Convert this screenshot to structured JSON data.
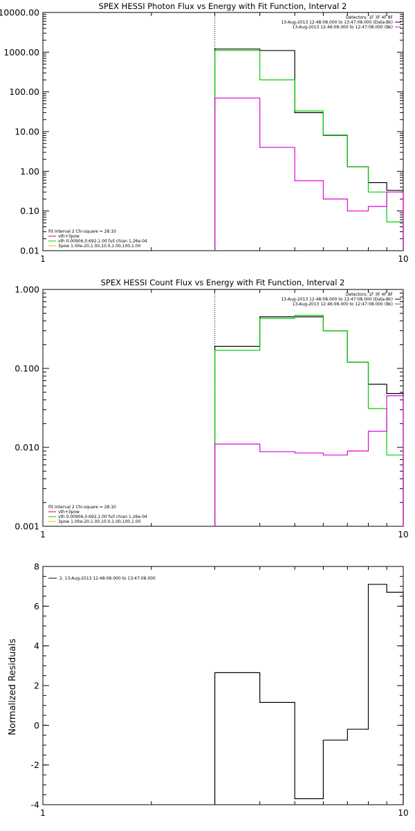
{
  "chart_data": [
    {
      "type": "line",
      "title": "SPEX HESSI Photon Flux vs Energy with Fit Function, Interval 2",
      "xlabel": "",
      "ylabel": "",
      "xscale": "log",
      "yscale": "log",
      "xlim": [
        1,
        10
      ],
      "ylim": [
        0.01,
        10000
      ],
      "x_ticks": [
        "1",
        "10"
      ],
      "y_ticks": [
        "10000.00",
        "1000.00",
        "100.00",
        "10.00",
        "1.00",
        "0.10",
        "0.01"
      ],
      "y_tick_values": [
        10000,
        1000,
        100,
        10,
        1,
        0.1,
        0.01
      ],
      "vline_x": 3,
      "energy_edges": [
        3,
        4,
        5,
        6,
        7,
        8,
        9,
        10
      ],
      "series": [
        {
          "name": "",
          "color": "#000000",
          "values": [
            1200,
            1100,
            30,
            8,
            1.3,
            0.52,
            0.33
          ]
        },
        {
          "name": "",
          "color": "#00d000",
          "values": [
            1100,
            200,
            33,
            8.2,
            1.3,
            0.3,
            0.053
          ]
        },
        {
          "name": "",
          "color": "#e000e0",
          "values": [
            70,
            4,
            0.58,
            0.2,
            0.1,
            0.13,
            0.3
          ]
        }
      ],
      "legend_tr": {
        "lines": [
          "Detectors: 1F 3F 4F 8F",
          "13-Aug-2013 12:48:08.000 to 13:47:08.000 (Data-Bk)",
          "13-Aug-2013 12:46:08.000 to 12:47:08.000 (Bk)"
        ],
        "colors": [
          "",
          "#000000",
          "#e000e0"
        ]
      },
      "legend_bl": {
        "lines": [
          "Fit Interval 2   Chi-square = 28.10",
          "vth+3pow",
          "vth 0.00906,0.692,1.00   full chian 1.26e-04",
          "3pow 1.00e-20,1.00,10.0,1.00,100,1.00"
        ],
        "colors": [
          "",
          "#e00000",
          "#00d000",
          "#e0c000"
        ]
      }
    },
    {
      "type": "line",
      "title": "SPEX HESSI Count Flux vs Energy with Fit Function, Interval 2",
      "xlabel": "",
      "ylabel": "",
      "xscale": "log",
      "yscale": "log",
      "xlim": [
        1,
        10
      ],
      "ylim": [
        0.001,
        1
      ],
      "x_ticks": [
        "1",
        "10"
      ],
      "y_ticks": [
        "1.000",
        "0.100",
        "0.010",
        "0.001"
      ],
      "y_tick_values": [
        1,
        0.1,
        0.01,
        0.001
      ],
      "vline_x": 3,
      "energy_edges": [
        3,
        4,
        5,
        6,
        7,
        8,
        9,
        10
      ],
      "series": [
        {
          "name": "",
          "color": "#000000",
          "values": [
            0.19,
            0.45,
            0.45,
            0.3,
            0.12,
            0.063,
            0.048
          ]
        },
        {
          "name": "",
          "color": "#00d000",
          "values": [
            0.17,
            0.43,
            0.47,
            0.3,
            0.12,
            0.031,
            0.008
          ]
        },
        {
          "name": "",
          "color": "#e000e0",
          "values": [
            0.011,
            0.0088,
            0.0085,
            0.008,
            0.009,
            0.016,
            0.045
          ]
        }
      ],
      "legend_tr": {
        "lines": [
          "Detectors: 1F 3F 4F 8F",
          "13-Aug-2013 12:48:08.000 to 13:47:08.000 (Data-Bk)",
          "13-Aug-2013 12:46:08.000 to 12:47:08.000 (Bk)"
        ],
        "colors": [
          "",
          "#000000",
          "#e000e0"
        ]
      },
      "legend_bl": {
        "lines": [
          "Fit Interval 2   Chi-square = 28.10",
          "vth+3pow",
          "vth 0.00906,0.692,1.00   full chian 1.26e-04",
          "3pow 1.00e-20,1.00,10.0,1.00,100,1.00"
        ],
        "colors": [
          "",
          "#e00000",
          "#00d000",
          "#e0c000"
        ]
      }
    },
    {
      "type": "line",
      "title": "",
      "xlabel": "",
      "ylabel": "Normalized Residuals",
      "xscale": "log",
      "yscale": "linear",
      "xlim": [
        1,
        10
      ],
      "ylim": [
        -4,
        8
      ],
      "x_ticks": [
        "1",
        "10"
      ],
      "y_ticks": [
        "8",
        "6",
        "4",
        "2",
        "0",
        "-2",
        "-4"
      ],
      "y_tick_values": [
        8,
        6,
        4,
        2,
        0,
        -2,
        -4
      ],
      "energy_edges": [
        3,
        4,
        5,
        6,
        7,
        8,
        9,
        10
      ],
      "series": [
        {
          "name": "",
          "color": "#000000",
          "values": [
            2.65,
            1.15,
            -3.7,
            -0.75,
            -0.2,
            7.1,
            6.7
          ]
        }
      ],
      "legend_tl": {
        "lines": [
          "2. 13-Aug-2013 12:48:08.000 to 13:47:08.000"
        ],
        "colors": [
          "#000000"
        ]
      }
    }
  ]
}
